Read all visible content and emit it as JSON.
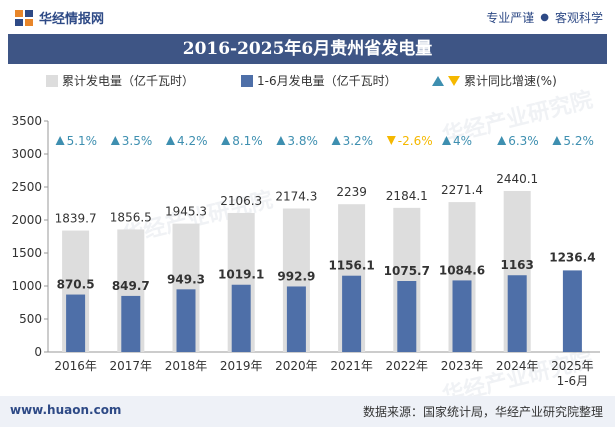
{
  "header": {
    "brand": "华经情报网",
    "slogan_left": "专业严谨",
    "slogan_sep": "●",
    "slogan_right": "客观科学"
  },
  "chart_data": {
    "type": "bar",
    "title": "2016-2025年6月贵州省发电量",
    "categories": [
      "2016年",
      "2017年",
      "2018年",
      "2019年",
      "2020年",
      "2021年",
      "2022年",
      "2023年",
      "2024年",
      "2025年\n1-6月"
    ],
    "series": [
      {
        "name": "累计发电量（亿千瓦时）",
        "color": "#dddddd",
        "values": [
          1839.7,
          1856.5,
          1945.3,
          2106.3,
          2174.3,
          2239,
          2184.1,
          2271.4,
          2440.1,
          null
        ]
      },
      {
        "name": "1-6月发电量（亿千瓦时）",
        "color": "#4e6fa8",
        "values": [
          870.5,
          849.7,
          949.3,
          1019.1,
          992.9,
          1156.1,
          1075.7,
          1084.6,
          1163,
          1236.4
        ]
      }
    ],
    "growth": {
      "name": "累计同比增速(%)",
      "values": [
        5.1,
        3.5,
        4.2,
        8.1,
        3.8,
        3.2,
        -2.6,
        4,
        6.3,
        5.2
      ],
      "labels": [
        "5.1%",
        "3.5%",
        "4.2%",
        "8.1%",
        "3.8%",
        "3.2%",
        "-2.6%",
        "4%",
        "6.3%",
        "5.2%"
      ],
      "up_color": "#3e8fb0",
      "down_color": "#f5b800"
    },
    "ylim": [
      0,
      3500
    ],
    "yticks": [
      0,
      500,
      1000,
      1500,
      2000,
      2500,
      3000,
      3500
    ],
    "legend_position": "top"
  },
  "footer": {
    "website": "www.huaon.com",
    "source": "数据来源：国家统计局，华经产业研究院整理"
  },
  "watermark": {
    "text1": "华经产业研究院",
    "text2": "www.huaon.com"
  }
}
